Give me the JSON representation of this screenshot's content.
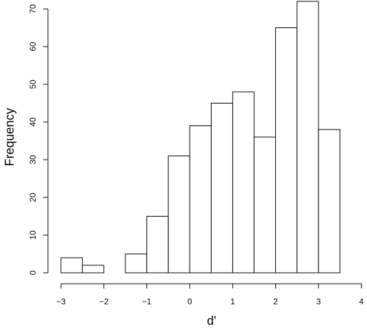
{
  "chart_data": {
    "type": "bar",
    "subtype": "histogram",
    "xlabel": "d'",
    "ylabel": "Frequency",
    "bins": [
      {
        "start": -3.0,
        "end": -2.5,
        "count": 4
      },
      {
        "start": -2.5,
        "end": -2.0,
        "count": 2
      },
      {
        "start": -2.0,
        "end": -1.5,
        "count": 0
      },
      {
        "start": -1.5,
        "end": -1.0,
        "count": 5
      },
      {
        "start": -1.0,
        "end": -0.5,
        "count": 15
      },
      {
        "start": -0.5,
        "end": 0.0,
        "count": 31
      },
      {
        "start": 0.0,
        "end": 0.5,
        "count": 39
      },
      {
        "start": 0.5,
        "end": 1.0,
        "count": 45
      },
      {
        "start": 1.0,
        "end": 1.5,
        "count": 48
      },
      {
        "start": 1.5,
        "end": 2.0,
        "count": 36
      },
      {
        "start": 2.0,
        "end": 2.5,
        "count": 65
      },
      {
        "start": 2.5,
        "end": 3.0,
        "count": 72
      },
      {
        "start": 3.0,
        "end": 3.5,
        "count": 38
      }
    ],
    "xlim": [
      -3,
      4
    ],
    "ylim": [
      0,
      72
    ],
    "x_ticks": [
      "−3",
      "−2",
      "−1",
      "0",
      "1",
      "2",
      "3",
      "4"
    ],
    "y_ticks": [
      "0",
      "10",
      "20",
      "30",
      "40",
      "50",
      "60",
      "70"
    ],
    "grid": false,
    "legend": "none",
    "colors": {
      "bar_fill": "#ffffff",
      "bar_stroke": "#000000"
    }
  }
}
